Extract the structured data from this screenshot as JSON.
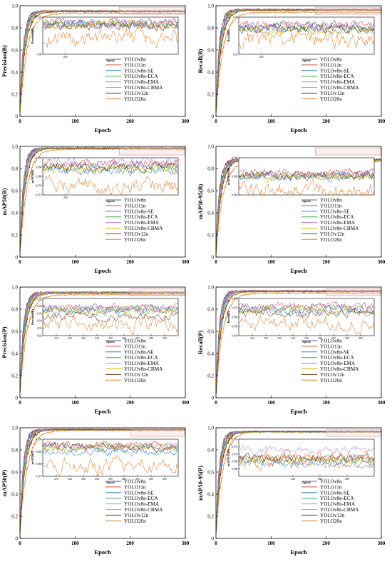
{
  "series_names": [
    "YOLOv8n",
    "YOLO11n",
    "YOLOv8n-SE",
    "YOLOv8n-ECA",
    "YOLOv8n-EMA",
    "YOLOv8n-CBMA",
    "YOLOv12n",
    "YOLO26n"
  ],
  "series_colors": [
    "#5a5a8c",
    "#d9534f",
    "#3b7dd8",
    "#3aa655",
    "#b27fd8",
    "#e6b800",
    "#6b3a1e",
    "#e07b22"
  ],
  "chart_data": [
    {
      "type": "line",
      "panel_id": "precision-b",
      "ylabel": "Precision(B)",
      "xlabel": "Epoch",
      "xlim": [
        0,
        300
      ],
      "ylim": [
        0,
        1.0
      ],
      "xticks": [
        0,
        100,
        200,
        300
      ],
      "yticks": [
        0,
        0.2,
        0.4,
        0.6,
        0.8,
        1.0
      ],
      "final_values": [
        0.95,
        0.955,
        0.948,
        0.952,
        0.95,
        0.947,
        0.945,
        0.93
      ],
      "inset": {
        "ylabel": "Precision(B)",
        "xlabel": "Epoch",
        "xlim": [
          180,
          300
        ],
        "xticks": [
          200
        ],
        "ylim": [
          0.88,
          0.97
        ],
        "yticks": [
          0.88,
          0.97
        ],
        "levels": [
          0.955,
          0.957,
          0.952,
          0.953,
          0.954,
          0.951,
          0.948,
          0.92
        ]
      }
    },
    {
      "type": "line",
      "panel_id": "recall-b",
      "ylabel": "Recall(B)",
      "xlabel": "Epoch",
      "xlim": [
        0,
        300
      ],
      "ylim": [
        0,
        1.0
      ],
      "xticks": [
        0,
        100,
        200,
        300
      ],
      "yticks": [
        0,
        0.2,
        0.4,
        0.6,
        0.8,
        1.0
      ],
      "final_values": [
        0.965,
        0.968,
        0.96,
        0.962,
        0.964,
        0.958,
        0.96,
        0.94
      ],
      "inset": {
        "ylabel": "Recall(B)",
        "xlabel": "Epoch",
        "xlim": [
          180,
          300
        ],
        "xticks": [
          200
        ],
        "ylim": [
          0.92,
          0.98
        ],
        "yticks": [
          0.92,
          0.98
        ],
        "levels": [
          0.966,
          0.968,
          0.96,
          0.962,
          0.964,
          0.958,
          0.961,
          0.945
        ]
      }
    },
    {
      "type": "line",
      "panel_id": "map50-b",
      "ylabel": "mAP50(B)",
      "xlabel": "Epoch",
      "xlim": [
        0,
        300
      ],
      "ylim": [
        0,
        1.0
      ],
      "xticks": [
        0,
        100,
        200,
        300
      ],
      "yticks": [
        0,
        0.2,
        0.4,
        0.6,
        0.8,
        1.0
      ],
      "final_values": [
        0.985,
        0.986,
        0.982,
        0.984,
        0.985,
        0.983,
        0.984,
        0.975
      ],
      "inset": {
        "ylabel": "mAP50(B)",
        "xlabel": "Epoch",
        "xlim": [
          180,
          300
        ],
        "xticks": [
          200
        ],
        "ylim": [
          0.972,
          0.988
        ],
        "yticks": [
          0.972,
          0.976,
          0.98,
          0.984,
          0.988
        ],
        "ytick_labels": [
          "0.972",
          "0.976",
          "0.980",
          "0.984",
          "0.988"
        ],
        "levels": [
          0.9845,
          0.9855,
          0.9825,
          0.9835,
          0.9865,
          0.983,
          0.984,
          0.976
        ]
      }
    },
    {
      "type": "line",
      "panel_id": "map50-95-b",
      "ylabel": "mAP50-95(B)",
      "xlabel": "Epoch",
      "xlim": [
        0,
        300
      ],
      "ylim": [
        0,
        1.0
      ],
      "xticks": [
        0,
        100,
        200,
        300
      ],
      "yticks": [
        0,
        0.2,
        0.4,
        0.6,
        0.8,
        1.0
      ],
      "final_values": [
        0.88,
        0.885,
        0.875,
        0.878,
        0.882,
        0.876,
        0.879,
        0.86
      ],
      "inset": {
        "ylabel": "mAP50-95(B)",
        "xlabel": "Epoch",
        "xlim": [
          180,
          300
        ],
        "xticks": [],
        "ylim": [
          0.86,
          0.9
        ],
        "yticks": [
          0.86,
          0.88,
          0.9
        ],
        "ytick_labels": [
          "0.860",
          "0.880",
          "0.900"
        ],
        "levels": [
          0.8815,
          0.8835,
          0.8795,
          0.8805,
          0.8825,
          0.88,
          0.881,
          0.865
        ]
      }
    },
    {
      "type": "line",
      "panel_id": "precision-p",
      "ylabel": "Precision(P)",
      "xlabel": "Epoch",
      "xlim": [
        0,
        300
      ],
      "ylim": [
        0,
        1.0
      ],
      "xticks": [
        0,
        100,
        200,
        300
      ],
      "yticks": [
        0,
        0.2,
        0.4,
        0.6,
        0.8,
        1.0
      ],
      "final_values": [
        0.95,
        0.955,
        0.948,
        0.952,
        0.95,
        0.947,
        0.945,
        0.93
      ],
      "inset": {
        "ylabel": "Precision(P)",
        "xlabel": "Epoch",
        "xlim": [
          200,
          300
        ],
        "xticks": [
          210,
          220,
          230,
          240,
          250,
          260,
          270,
          280,
          290
        ],
        "ylim": [
          0.92,
          0.97
        ],
        "yticks": [
          0.92,
          0.93,
          0.94,
          0.95,
          0.96,
          0.97
        ],
        "levels": [
          0.956,
          0.958,
          0.953,
          0.955,
          0.957,
          0.952,
          0.946,
          0.935
        ]
      }
    },
    {
      "type": "line",
      "panel_id": "recall-p",
      "ylabel": "Recall(P)",
      "xlabel": "Epoch",
      "xlim": [
        0,
        300
      ],
      "ylim": [
        0,
        1.0
      ],
      "xticks": [
        0,
        100,
        200,
        300
      ],
      "yticks": [
        0,
        0.2,
        0.4,
        0.6,
        0.8,
        1.0
      ],
      "final_values": [
        0.965,
        0.968,
        0.96,
        0.962,
        0.964,
        0.958,
        0.96,
        0.945
      ],
      "inset": {
        "ylabel": "Recall(P)",
        "xlabel": "Epoch",
        "xlim": [
          200,
          300
        ],
        "xticks": [
          210,
          220,
          230,
          240,
          250,
          260,
          270,
          280,
          290
        ],
        "ylim": [
          0.94,
          0.98
        ],
        "yticks": [
          0.94,
          0.95,
          0.96,
          0.97,
          0.98
        ],
        "ytick_labels": [
          "0.940",
          "0.950",
          "0.960",
          "0.970",
          "0.980"
        ],
        "levels": [
          0.97,
          0.972,
          0.966,
          0.968,
          0.969,
          0.967,
          0.964,
          0.953
        ]
      }
    },
    {
      "type": "line",
      "panel_id": "map50-p",
      "ylabel": "mAP50(P)",
      "xlabel": "Epoch",
      "xlim": [
        0,
        300
      ],
      "ylim": [
        0,
        1.0
      ],
      "xticks": [
        0,
        100,
        200,
        300
      ],
      "yticks": [
        0,
        0.2,
        0.4,
        0.6,
        0.8,
        1.0
      ],
      "final_values": [
        0.985,
        0.986,
        0.982,
        0.984,
        0.985,
        0.983,
        0.984,
        0.975
      ],
      "inset": {
        "ylabel": "mAP50(P)",
        "xlabel": "Epoch",
        "xlim": [
          200,
          300
        ],
        "xticks": [
          210,
          220,
          230,
          240,
          250,
          260,
          270,
          280,
          290
        ],
        "ylim": [
          0.975,
          0.99
        ],
        "yticks": [
          0.975,
          0.98,
          0.985,
          0.99
        ],
        "ytick_labels": [
          "0.975",
          "0.980",
          "0.985",
          "0.990"
        ],
        "levels": [
          0.9868,
          0.9875,
          0.9848,
          0.9862,
          0.9872,
          0.9865,
          0.987,
          0.9792
        ]
      }
    },
    {
      "type": "line",
      "panel_id": "map50-95-p",
      "ylabel": "mAP50-95(P)",
      "xlabel": "Epoch",
      "xlim": [
        0,
        300
      ],
      "ylim": [
        0,
        1.0
      ],
      "xticks": [
        0,
        100,
        200,
        300
      ],
      "yticks": [
        0,
        0.2,
        0.4,
        0.6,
        0.8,
        1.0
      ],
      "final_values": [
        0.965,
        0.966,
        0.962,
        0.964,
        0.968,
        0.963,
        0.965,
        0.964
      ],
      "inset": {
        "ylabel": "mAP50-95(P)",
        "xlabel": "Epoch",
        "xlim": [
          200,
          300
        ],
        "xticks": [
          240,
          260,
          280
        ],
        "ylim": [
          0.964,
          0.974
        ],
        "yticks": [
          0.966,
          0.968,
          0.97,
          0.972,
          0.974
        ],
        "ytick_labels": [
          "0.966",
          "0.968",
          "0.970",
          "0.972",
          "0.974"
        ],
        "levels": [
          0.9685,
          0.969,
          0.9675,
          0.968,
          0.9712,
          0.9686,
          0.969,
          0.9688
        ]
      }
    }
  ]
}
